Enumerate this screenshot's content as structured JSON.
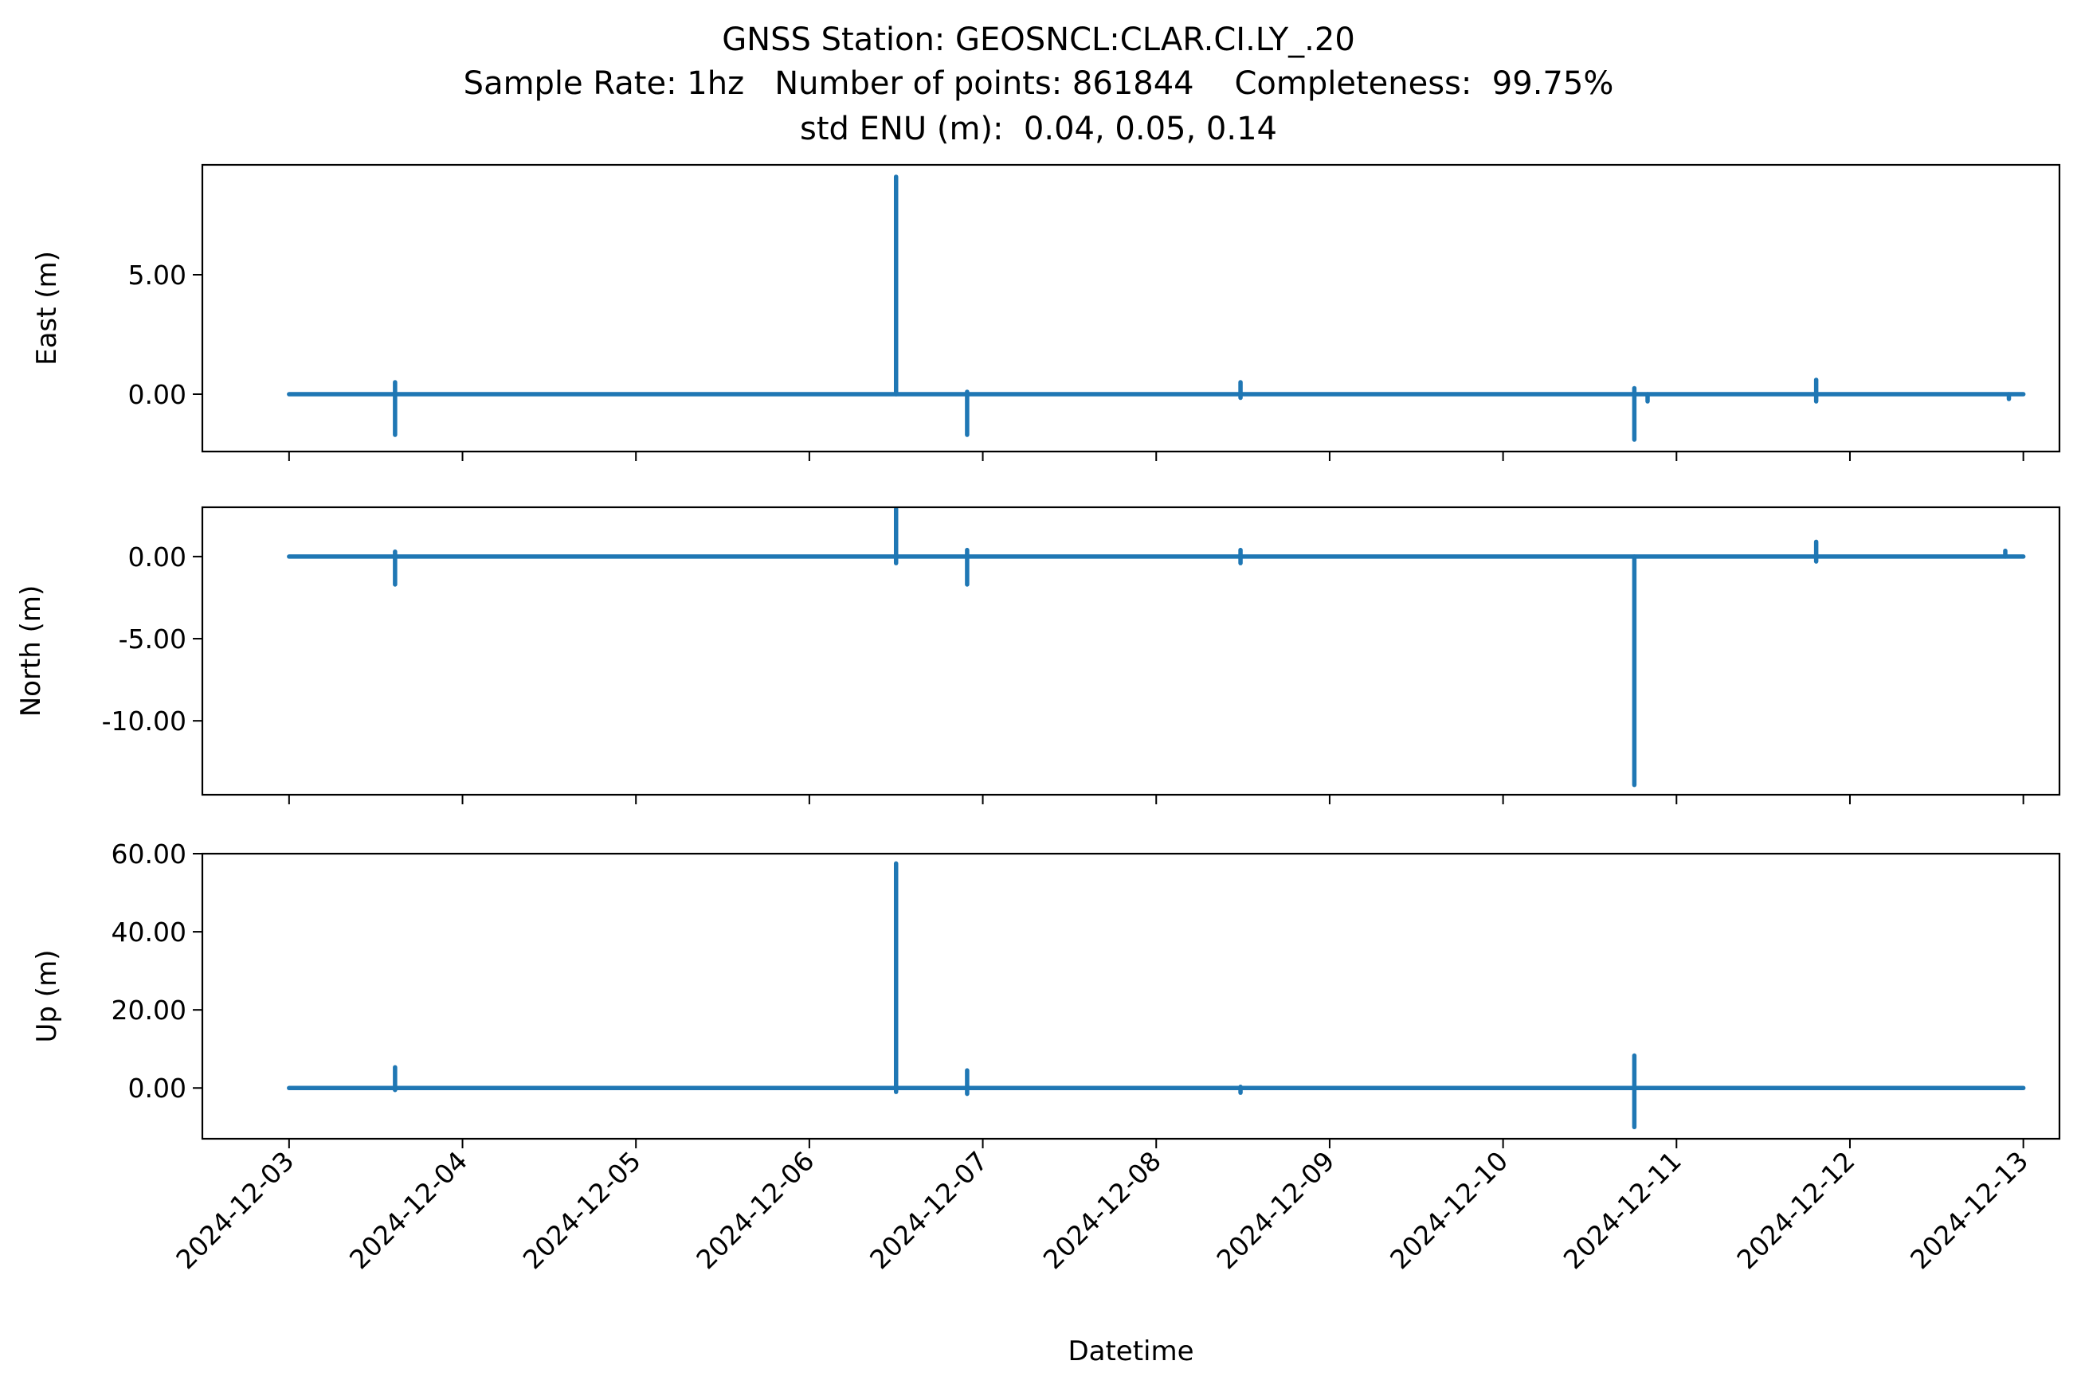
{
  "title": {
    "line1": "GNSS Station: GEOSNCL:CLAR.CI.LY_.20",
    "line2": "Sample Rate: 1hz   Number of points: 861844    Completeness:  99.75%",
    "line3": "std ENU (m):  0.04, 0.05, 0.14"
  },
  "colors": {
    "series": "#1f77b4",
    "axis": "#000000",
    "background": "#ffffff"
  },
  "chart_data": [
    {
      "type": "line",
      "ylabel": "East (m)",
      "xlim": [
        "2024-12-02T12:00",
        "2024-12-13T05:00"
      ],
      "ylim": [
        -2.4,
        9.6
      ],
      "yticks": [
        0,
        5
      ],
      "ytick_labels": [
        "0.00",
        "5.00"
      ],
      "xtick_labels_visible": false,
      "grid": false,
      "legend": "none",
      "baseline": 0,
      "series": [
        {
          "spikes": [
            {
              "x": "2024-12-03T14:40",
              "min": -1.7,
              "max": 0.5
            },
            {
              "x": "2024-12-06T12:00",
              "min": 0.0,
              "max": 9.1
            },
            {
              "x": "2024-12-06T21:50",
              "min": -1.7,
              "max": 0.1
            },
            {
              "x": "2024-12-08T11:40",
              "min": -0.15,
              "max": 0.5
            },
            {
              "x": "2024-12-10T18:10",
              "min": -1.9,
              "max": 0.25
            },
            {
              "x": "2024-12-10T20:00",
              "min": -0.3,
              "max": 0.0
            },
            {
              "x": "2024-12-11T19:20",
              "min": -0.3,
              "max": 0.6
            },
            {
              "x": "2024-12-12T22:00",
              "min": -0.2,
              "max": 0.0
            }
          ]
        }
      ]
    },
    {
      "type": "line",
      "ylabel": "North (m)",
      "xlim": [
        "2024-12-02T12:00",
        "2024-12-13T05:00"
      ],
      "ylim": [
        -14.5,
        3.0
      ],
      "yticks": [
        0,
        -5,
        -10
      ],
      "ytick_labels": [
        "0.00",
        "-5.00",
        "-10.00"
      ],
      "xtick_labels_visible": false,
      "grid": false,
      "legend": "none",
      "baseline": 0,
      "series": [
        {
          "spikes": [
            {
              "x": "2024-12-03T14:40",
              "min": -1.7,
              "max": 0.3
            },
            {
              "x": "2024-12-06T12:00",
              "min": -0.4,
              "max": 2.9
            },
            {
              "x": "2024-12-06T21:50",
              "min": -1.7,
              "max": 0.4
            },
            {
              "x": "2024-12-08T11:40",
              "min": -0.4,
              "max": 0.4
            },
            {
              "x": "2024-12-10T18:10",
              "min": -13.9,
              "max": 0.0
            },
            {
              "x": "2024-12-11T19:20",
              "min": -0.3,
              "max": 0.9
            },
            {
              "x": "2024-12-12T21:30",
              "min": 0.0,
              "max": 0.35
            }
          ]
        }
      ]
    },
    {
      "type": "line",
      "ylabel": "Up (m)",
      "xlabel": "Datetime",
      "xlim": [
        "2024-12-02T12:00",
        "2024-12-13T05:00"
      ],
      "ylim": [
        -13,
        60
      ],
      "yticks": [
        0,
        20,
        40,
        60
      ],
      "ytick_labels": [
        "0.00",
        "20.00",
        "40.00",
        "60.00"
      ],
      "xticks": [
        "2024-12-03",
        "2024-12-04",
        "2024-12-05",
        "2024-12-06",
        "2024-12-07",
        "2024-12-08",
        "2024-12-09",
        "2024-12-10",
        "2024-12-11",
        "2024-12-12",
        "2024-12-13"
      ],
      "grid": false,
      "legend": "none",
      "baseline": 0,
      "series": [
        {
          "spikes": [
            {
              "x": "2024-12-03T14:40",
              "min": -0.5,
              "max": 5.3
            },
            {
              "x": "2024-12-06T12:00",
              "min": -1.0,
              "max": 57.5
            },
            {
              "x": "2024-12-06T21:50",
              "min": -1.5,
              "max": 4.5
            },
            {
              "x": "2024-12-08T11:40",
              "min": -1.2,
              "max": 0.3
            },
            {
              "x": "2024-12-10T18:10",
              "min": -10.0,
              "max": 8.3
            }
          ]
        }
      ]
    }
  ]
}
